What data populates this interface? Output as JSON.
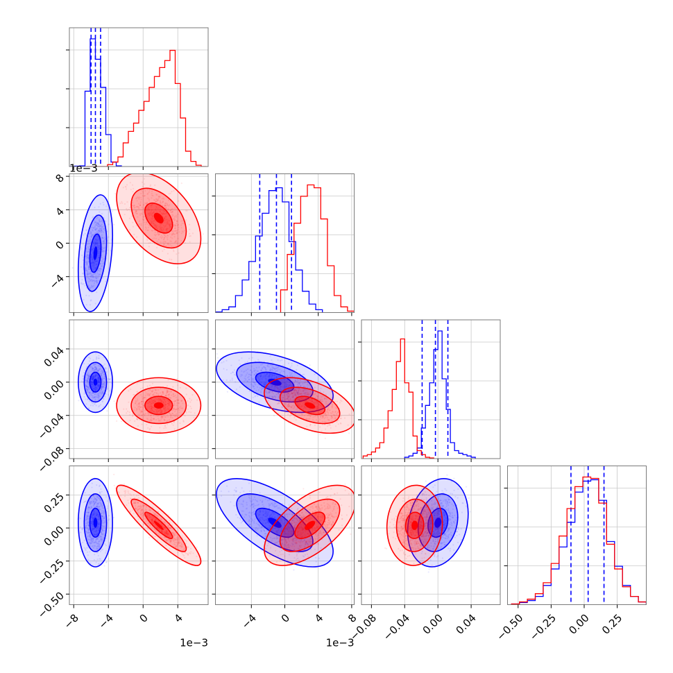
{
  "colors": {
    "posterior_a": "#0000ff",
    "posterior_b": "#ff0000"
  },
  "offsets": {
    "row1": "1e−3",
    "col0": "1e−3",
    "col1": "1e−3"
  },
  "chart_data": {
    "type": "corner",
    "grid": true,
    "ranges": [
      [
        -8.5,
        7.5
      ],
      [
        -8.3,
        8.3
      ],
      [
        -0.092,
        0.075
      ],
      [
        -0.58,
        0.47
      ]
    ],
    "ticks": [
      [
        {
          "v": -8,
          "label": "−8"
        },
        {
          "v": -4,
          "label": "−4"
        },
        {
          "v": 0,
          "label": "0"
        },
        {
          "v": 4,
          "label": "4"
        }
      ],
      [
        {
          "v": -4,
          "label": "−4"
        },
        {
          "v": 0,
          "label": "0"
        },
        {
          "v": 4,
          "label": "4"
        },
        {
          "v": 8,
          "label": "8"
        }
      ],
      [
        {
          "v": -0.08,
          "label": "−0.08"
        },
        {
          "v": -0.04,
          "label": "−0.04"
        },
        {
          "v": 0.0,
          "label": "0.00"
        },
        {
          "v": 0.04,
          "label": "0.04"
        }
      ],
      [
        {
          "v": -0.5,
          "label": "−0.50"
        },
        {
          "v": -0.25,
          "label": "−0.25"
        },
        {
          "v": 0.0,
          "label": "0.00"
        },
        {
          "v": 0.25,
          "label": "0.25"
        }
      ]
    ],
    "series": [
      {
        "color": "#0000ff",
        "mean": [
          -5.5,
          -1.2,
          0.0,
          0.04
        ],
        "std": [
          0.65,
          2.3,
          0.012,
          0.11
        ],
        "corr": [
          [
            1,
            0.3,
            0.0,
            0.0
          ],
          [
            0.3,
            1,
            -0.45,
            -0.65
          ],
          [
            0.0,
            -0.45,
            1,
            0.2
          ],
          [
            0.0,
            -0.65,
            0.2,
            1
          ]
        ],
        "quantiles": [
          [
            -6.0,
            -5.5,
            -4.9
          ],
          [
            -3.0,
            -1.0,
            0.8
          ],
          [
            -0.019,
            -0.003,
            0.012
          ],
          [
            -0.1,
            0.03,
            0.15
          ]
        ],
        "histograms": [
          {
            "edges": [
              -8.5,
              -7.9,
              -7.3,
              -6.7,
              -6.1,
              -5.5,
              -4.9,
              -4.3,
              -3.7,
              -3.1,
              -2.5
            ],
            "counts": [
              0,
              3,
              5,
              590,
              1000,
              840,
              620,
              250,
              35,
              5
            ]
          },
          {
            "edges": [
              -8.3,
              -7.5,
              -6.7,
              -5.9,
              -5.1,
              -4.3,
              -3.5,
              -2.7,
              -1.9,
              -1.1,
              -0.3,
              0.5,
              1.3,
              2.1,
              2.9,
              3.7,
              4.5
            ],
            "counts": [
              4,
              20,
              40,
              120,
              230,
              360,
              540,
              700,
              860,
              880,
              780,
              500,
              300,
              150,
              60,
              20
            ]
          },
          {
            "edges": [
              -0.04,
              -0.035,
              -0.03,
              -0.025,
              -0.02,
              -0.015,
              -0.01,
              -0.005,
              0.0,
              0.005,
              0.01,
              0.015,
              0.02,
              0.025,
              0.03,
              0.035,
              0.04,
              0.045
            ],
            "counts": [
              10,
              20,
              40,
              80,
              230,
              400,
              570,
              820,
              960,
              600,
              370,
              120,
              60,
              40,
              30,
              20,
              10
            ]
          },
          {
            "edges": [
              -0.55,
              -0.49,
              -0.43,
              -0.37,
              -0.31,
              -0.25,
              -0.19,
              -0.13,
              -0.07,
              -0.01,
              0.05,
              0.11,
              0.17,
              0.23,
              0.29,
              0.35,
              0.41,
              0.47
            ],
            "counts": [
              5,
              15,
              30,
              60,
              140,
              260,
              420,
              600,
              820,
              900,
              910,
              760,
              460,
              280,
              140,
              60,
              20
            ]
          }
        ]
      },
      {
        "color": "#ff0000",
        "mean": [
          1.8,
          3.0,
          -0.028,
          0.02
        ],
        "std": [
          1.6,
          1.8,
          0.011,
          0.1
        ],
        "corr": [
          [
            1,
            -0.45,
            0.0,
            -0.9
          ],
          [
            -0.45,
            1,
            -0.45,
            0.6
          ],
          [
            0.0,
            -0.45,
            1,
            0.05
          ],
          [
            -0.9,
            0.6,
            0.05,
            1
          ]
        ],
        "quantiles": [],
        "histograms": [
          {
            "edges": [
              -6.5,
              -5.9,
              -5.3,
              -4.7,
              -4.1,
              -3.5,
              -2.9,
              -2.3,
              -1.7,
              -1.1,
              -0.5,
              0.1,
              0.7,
              1.3,
              1.9,
              2.5,
              3.1,
              3.7,
              4.3,
              4.9,
              5.5,
              6.1,
              6.7,
              7.3
            ],
            "counts": [
              0,
              0,
              0,
              0,
              15,
              35,
              75,
              185,
              275,
              340,
              440,
              510,
              620,
              705,
              775,
              830,
              910,
              650,
              380,
              120,
              40,
              10,
              0
            ]
          },
          {
            "edges": [
              -0.5,
              0.3,
              1.1,
              1.9,
              2.7,
              3.5,
              4.3,
              5.1,
              5.9,
              6.7,
              7.5,
              8.3
            ],
            "counts": [
              160,
              410,
              630,
              820,
              900,
              880,
              660,
              330,
              120,
              40,
              10
            ]
          },
          {
            "edges": [
              -0.09,
              -0.085,
              -0.08,
              -0.075,
              -0.07,
              -0.065,
              -0.06,
              -0.055,
              -0.05,
              -0.045,
              -0.04,
              -0.035,
              -0.03,
              -0.025,
              -0.02,
              -0.015,
              -0.01,
              -0.005
            ],
            "counts": [
              20,
              30,
              50,
              80,
              120,
              230,
              360,
              520,
              730,
              900,
              570,
              500,
              170,
              60,
              30,
              10,
              5
            ]
          },
          {
            "edges": [
              -0.55,
              -0.49,
              -0.43,
              -0.37,
              -0.31,
              -0.25,
              -0.19,
              -0.13,
              -0.07,
              -0.01,
              0.05,
              0.11,
              0.17,
              0.23,
              0.29,
              0.35,
              0.41,
              0.47
            ],
            "counts": [
              5,
              20,
              40,
              80,
              160,
              300,
              500,
              700,
              860,
              930,
              920,
              740,
              440,
              260,
              130,
              60,
              20
            ]
          }
        ]
      }
    ],
    "levels": [
      0.39,
      0.86,
      0.99
    ]
  }
}
